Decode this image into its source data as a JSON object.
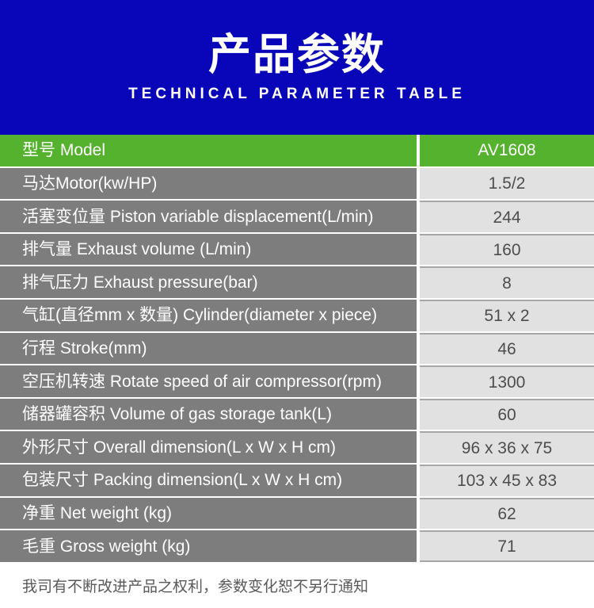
{
  "header": {
    "title": "产品参数",
    "subtitle": "TECHNICAL PARAMETER TABLE"
  },
  "table": {
    "rows": [
      {
        "label": "型号 Model",
        "value": "AV1608",
        "highlight": true
      },
      {
        "label": "马达Motor(kw/HP)",
        "value": "1.5/2"
      },
      {
        "label": "活塞变位量 Piston variable displacement(L/min)",
        "value": "244"
      },
      {
        "label": "排气量 Exhaust volume (L/min)",
        "value": "160"
      },
      {
        "label": "排气压力 Exhaust pressure(bar)",
        "value": "8"
      },
      {
        "label": "气缸(直径mm x 数量) Cylinder(diameter x piece)",
        "value": "51 x 2"
      },
      {
        "label": "行程 Stroke(mm)",
        "value": "46"
      },
      {
        "label": "空压机转速 Rotate speed of air compressor(rpm)",
        "value": "1300"
      },
      {
        "label": "储器罐容积 Volume of gas storage tank(L)",
        "value": "60"
      },
      {
        "label": "外形尺寸 Overall dimension(L x W x H cm)",
        "value": "96 x 36 x 75"
      },
      {
        "label": "包装尺寸 Packing dimension(L x W x H cm)",
        "value": "103 x 45 x 83"
      },
      {
        "label": "净重 Net weight (kg)",
        "value": "62"
      },
      {
        "label": "毛重 Gross weight (kg)",
        "value": "71"
      }
    ]
  },
  "footer": {
    "note": "我司有不断改进产品之权利，参数变化恕不另行通知"
  },
  "colors": {
    "header-bg": "#0806b8",
    "accent-green": "#55b22e",
    "label-bg": "#7d7d7d",
    "value-bg": "#e1e1e1",
    "value-text": "#4d4d4d",
    "note-text": "#595959",
    "line": "#a6a6a6"
  }
}
